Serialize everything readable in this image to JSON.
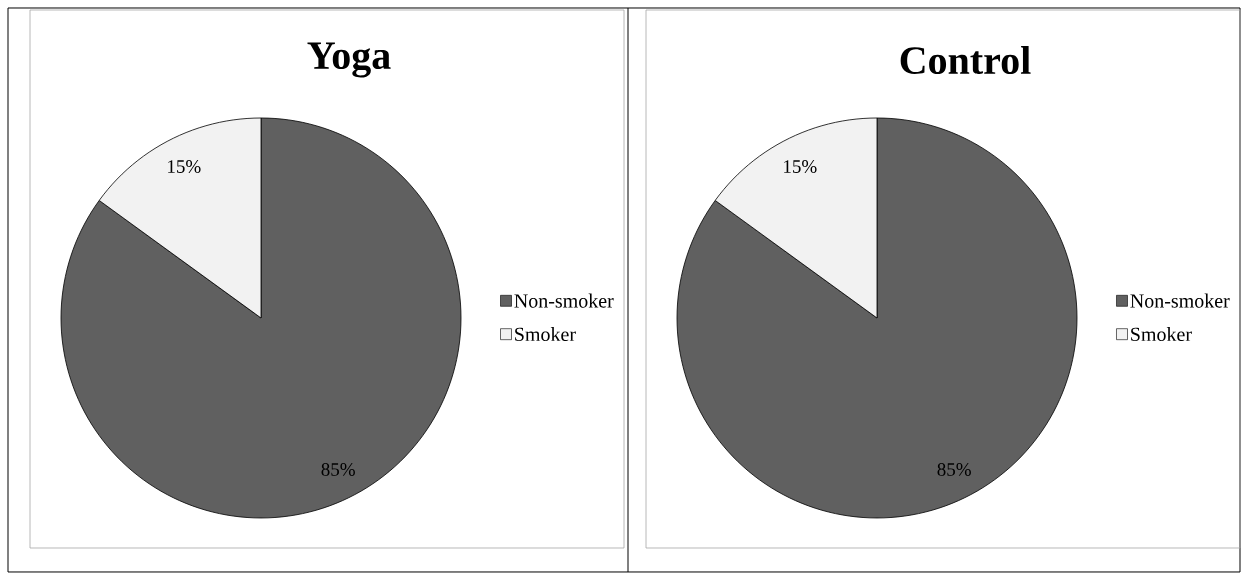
{
  "chart_data": [
    {
      "type": "pie",
      "title": "Yoga",
      "categories": [
        "Non-smoker",
        "Smoker"
      ],
      "values": [
        85,
        15
      ],
      "colors": [
        "#606060",
        "#f2f2f2"
      ],
      "value_labels": [
        "85%",
        "15%"
      ],
      "legend": "right"
    },
    {
      "type": "pie",
      "title": "Control",
      "categories": [
        "Non-smoker",
        "Smoker"
      ],
      "values": [
        85,
        15
      ],
      "colors": [
        "#606060",
        "#f2f2f2"
      ],
      "value_labels": [
        "85%",
        "15%"
      ],
      "legend": "right"
    }
  ]
}
